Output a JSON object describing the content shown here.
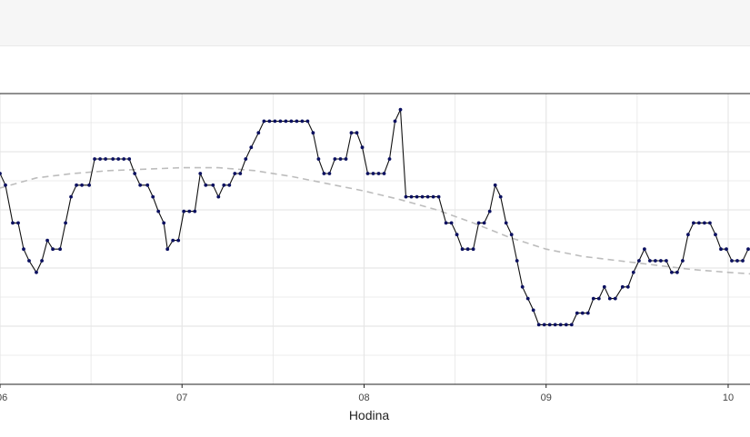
{
  "chart_data": {
    "type": "line",
    "xlabel": "Hodina",
    "x_ticks": [
      {
        "value": 6.0,
        "label": "06"
      },
      {
        "value": 7.0,
        "label": "07"
      },
      {
        "value": 8.0,
        "label": "08"
      },
      {
        "value": 9.0,
        "label": "09"
      },
      {
        "value": 10.0,
        "label": "10"
      }
    ],
    "xlim": [
      6.0,
      10.12
    ],
    "ylim": [
      0,
      20
    ],
    "grid": true,
    "colors": {
      "series": "#0b1060",
      "line": "#111111",
      "trend": "#bdbdbd",
      "grid": "#e6e6e6",
      "axis": "#222222"
    },
    "series": [
      {
        "points": [
          [
            6.0,
            14.5
          ],
          [
            6.03,
            13.7
          ],
          [
            6.07,
            11.1
          ],
          [
            6.1,
            11.1
          ],
          [
            6.13,
            9.3
          ],
          [
            6.16,
            8.5
          ],
          [
            6.2,
            7.7
          ],
          [
            6.23,
            8.5
          ],
          [
            6.26,
            9.9
          ],
          [
            6.29,
            9.3
          ],
          [
            6.33,
            9.3
          ],
          [
            6.36,
            11.1
          ],
          [
            6.39,
            12.9
          ],
          [
            6.42,
            13.7
          ],
          [
            6.45,
            13.7
          ],
          [
            6.49,
            13.7
          ],
          [
            6.52,
            15.5
          ],
          [
            6.55,
            15.5
          ],
          [
            6.58,
            15.5
          ],
          [
            6.62,
            15.5
          ],
          [
            6.65,
            15.5
          ],
          [
            6.68,
            15.5
          ],
          [
            6.71,
            15.5
          ],
          [
            6.74,
            14.5
          ],
          [
            6.77,
            13.7
          ],
          [
            6.81,
            13.7
          ],
          [
            6.84,
            12.9
          ],
          [
            6.87,
            11.9
          ],
          [
            6.9,
            11.1
          ],
          [
            6.92,
            9.3
          ],
          [
            6.95,
            9.9
          ],
          [
            6.98,
            9.9
          ],
          [
            7.01,
            11.9
          ],
          [
            7.04,
            11.9
          ],
          [
            7.07,
            11.9
          ],
          [
            7.1,
            14.5
          ],
          [
            7.13,
            13.7
          ],
          [
            7.17,
            13.7
          ],
          [
            7.2,
            12.9
          ],
          [
            7.23,
            13.7
          ],
          [
            7.26,
            13.7
          ],
          [
            7.29,
            14.5
          ],
          [
            7.32,
            14.5
          ],
          [
            7.35,
            15.5
          ],
          [
            7.38,
            16.3
          ],
          [
            7.42,
            17.3
          ],
          [
            7.45,
            18.1
          ],
          [
            7.48,
            18.1
          ],
          [
            7.51,
            18.1
          ],
          [
            7.54,
            18.1
          ],
          [
            7.57,
            18.1
          ],
          [
            7.6,
            18.1
          ],
          [
            7.63,
            18.1
          ],
          [
            7.66,
            18.1
          ],
          [
            7.69,
            18.1
          ],
          [
            7.72,
            17.3
          ],
          [
            7.75,
            15.5
          ],
          [
            7.78,
            14.5
          ],
          [
            7.81,
            14.5
          ],
          [
            7.84,
            15.5
          ],
          [
            7.87,
            15.5
          ],
          [
            7.9,
            15.5
          ],
          [
            7.93,
            17.3
          ],
          [
            7.96,
            17.3
          ],
          [
            7.99,
            16.3
          ],
          [
            8.02,
            14.5
          ],
          [
            8.05,
            14.5
          ],
          [
            8.08,
            14.5
          ],
          [
            8.11,
            14.5
          ],
          [
            8.14,
            15.5
          ],
          [
            8.17,
            18.1
          ],
          [
            8.2,
            18.9
          ],
          [
            8.23,
            12.9
          ],
          [
            8.26,
            12.9
          ],
          [
            8.29,
            12.9
          ],
          [
            8.32,
            12.9
          ],
          [
            8.35,
            12.9
          ],
          [
            8.38,
            12.9
          ],
          [
            8.41,
            12.9
          ],
          [
            8.45,
            11.1
          ],
          [
            8.48,
            11.1
          ],
          [
            8.51,
            10.3
          ],
          [
            8.54,
            9.3
          ],
          [
            8.57,
            9.3
          ],
          [
            8.6,
            9.3
          ],
          [
            8.63,
            11.1
          ],
          [
            8.66,
            11.1
          ],
          [
            8.69,
            11.9
          ],
          [
            8.72,
            13.7
          ],
          [
            8.75,
            12.9
          ],
          [
            8.78,
            11.1
          ],
          [
            8.81,
            10.3
          ],
          [
            8.84,
            8.5
          ],
          [
            8.87,
            6.7
          ],
          [
            8.9,
            5.9
          ],
          [
            8.93,
            5.1
          ],
          [
            8.96,
            4.1
          ],
          [
            8.99,
            4.1
          ],
          [
            9.02,
            4.1
          ],
          [
            9.05,
            4.1
          ],
          [
            9.08,
            4.1
          ],
          [
            9.11,
            4.1
          ],
          [
            9.14,
            4.1
          ],
          [
            9.17,
            4.9
          ],
          [
            9.2,
            4.9
          ],
          [
            9.23,
            4.9
          ],
          [
            9.26,
            5.9
          ],
          [
            9.29,
            5.9
          ],
          [
            9.32,
            6.7
          ],
          [
            9.35,
            5.9
          ],
          [
            9.38,
            5.9
          ],
          [
            9.42,
            6.7
          ],
          [
            9.45,
            6.7
          ],
          [
            9.48,
            7.7
          ],
          [
            9.51,
            8.5
          ],
          [
            9.54,
            9.3
          ],
          [
            9.57,
            8.5
          ],
          [
            9.6,
            8.5
          ],
          [
            9.63,
            8.5
          ],
          [
            9.66,
            8.5
          ],
          [
            9.69,
            7.7
          ],
          [
            9.72,
            7.7
          ],
          [
            9.75,
            8.5
          ],
          [
            9.78,
            10.3
          ],
          [
            9.81,
            11.1
          ],
          [
            9.84,
            11.1
          ],
          [
            9.87,
            11.1
          ],
          [
            9.9,
            11.1
          ],
          [
            9.93,
            10.3
          ],
          [
            9.96,
            9.3
          ],
          [
            9.99,
            9.3
          ],
          [
            10.02,
            8.5
          ],
          [
            10.05,
            8.5
          ],
          [
            10.08,
            8.5
          ],
          [
            10.11,
            9.3
          ]
        ]
      }
    ],
    "trend": {
      "style": "dashed",
      "points": [
        [
          6.0,
          13.5
        ],
        [
          6.2,
          14.2
        ],
        [
          6.4,
          14.5
        ],
        [
          6.6,
          14.7
        ],
        [
          6.8,
          14.8
        ],
        [
          7.0,
          14.9
        ],
        [
          7.2,
          14.9
        ],
        [
          7.4,
          14.7
        ],
        [
          7.6,
          14.3
        ],
        [
          7.8,
          13.8
        ],
        [
          8.0,
          13.3
        ],
        [
          8.2,
          12.7
        ],
        [
          8.4,
          12.0
        ],
        [
          8.6,
          11.1
        ],
        [
          8.8,
          10.1
        ],
        [
          9.0,
          9.3
        ],
        [
          9.2,
          8.8
        ],
        [
          9.4,
          8.5
        ],
        [
          9.6,
          8.2
        ],
        [
          9.8,
          7.9
        ],
        [
          10.0,
          7.7
        ],
        [
          10.12,
          7.6
        ]
      ]
    }
  }
}
